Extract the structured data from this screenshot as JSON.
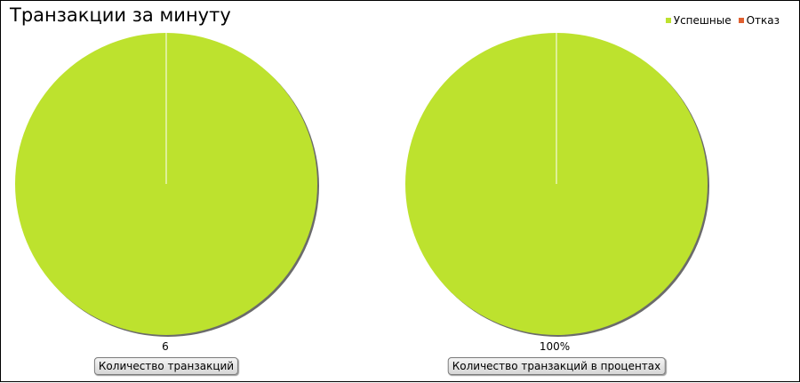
{
  "title": "Транзакции за минуту",
  "legend": [
    {
      "label": "Успешные",
      "color": "#bde22e"
    },
    {
      "label": "Отказ",
      "color": "#e06030"
    }
  ],
  "chart_data": [
    {
      "type": "pie",
      "title": "Транзакции за минуту",
      "categories": [
        "Успешные",
        "Отказ"
      ],
      "values": [
        6,
        0
      ],
      "value_label": "6",
      "button_label": "Количество транзакций",
      "colors": [
        "#bde22e",
        "#e06030"
      ]
    },
    {
      "type": "pie",
      "categories": [
        "Успешные",
        "Отказ"
      ],
      "values": [
        100,
        0
      ],
      "value_label": "100%",
      "button_label": "Количество транзакций в процентах",
      "colors": [
        "#bde22e",
        "#e06030"
      ]
    }
  ]
}
